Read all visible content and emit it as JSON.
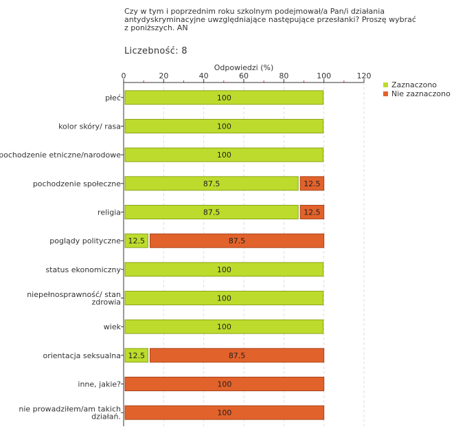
{
  "title": "Czy w tym i poprzednim roku szkolnym podejmował/a Pan/i działania antydyskryminacyjne uwzględniające następujące przesłanki? Proszę wybrać z poniższych. AN",
  "count_label": "Liczebność: 8",
  "colors": {
    "selected": "#bcdb2c",
    "not_selected": "#e2622b",
    "border_selected": "#8ca31c",
    "border_not": "#a8431b"
  },
  "chart_data": {
    "type": "bar",
    "orientation": "horizontal",
    "stacked": true,
    "xlabel": "Odpowiedzi (%)",
    "xlim": [
      0,
      120
    ],
    "xticks": [
      0,
      20,
      40,
      60,
      80,
      100,
      120
    ],
    "grid": true,
    "legend_position": "top-right",
    "categories": [
      "płeć",
      "kolor skóry/ rasa",
      "pochodzenie etniczne/narodowe",
      "pochodzenie społeczne",
      "religia",
      "poglądy polityczne",
      "status ekonomiczny",
      "niepełnosprawność/ stan zdrowia",
      "wiek",
      "orientacja seksualna",
      "inne, jakie?",
      "nie prowadziłem/am takich działań."
    ],
    "category_lines": [
      [
        "płeć"
      ],
      [
        "kolor skóry/ rasa"
      ],
      [
        "pochodzenie etniczne/narodowe"
      ],
      [
        "pochodzenie społeczne"
      ],
      [
        "religia"
      ],
      [
        "poglądy polityczne"
      ],
      [
        "status ekonomiczny"
      ],
      [
        "niepełnosprawność/ stan",
        "zdrowia"
      ],
      [
        "wiek"
      ],
      [
        "orientacja seksualna"
      ],
      [
        "inne, jakie?"
      ],
      [
        "nie prowadziłem/am takich",
        "działań."
      ]
    ],
    "series": [
      {
        "name": "Zaznaczono",
        "values": [
          100,
          100,
          100,
          87.5,
          87.5,
          12.5,
          100,
          100,
          100,
          12.5,
          0,
          0
        ],
        "labels": [
          "100",
          "100",
          "100",
          "87.5",
          "87.5",
          "12.5",
          "100",
          "100",
          "100",
          "12.5",
          "",
          ""
        ]
      },
      {
        "name": "Nie zaznaczono",
        "values": [
          0,
          0,
          0,
          12.5,
          12.5,
          87.5,
          0,
          0,
          0,
          87.5,
          100,
          100
        ],
        "labels": [
          "",
          "",
          "",
          "12.5",
          "12.5",
          "87.5",
          "",
          "",
          "",
          "87.5",
          "100",
          "100"
        ]
      }
    ]
  }
}
